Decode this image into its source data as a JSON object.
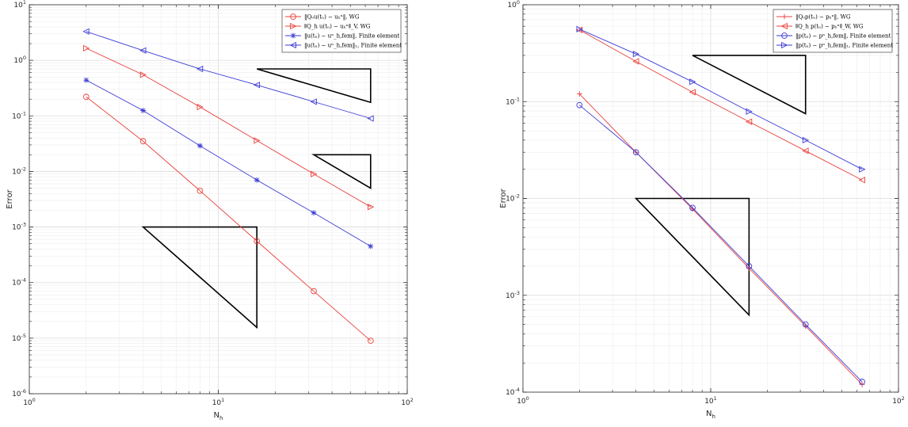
{
  "chart_data": [
    {
      "type": "line",
      "x_scale": "log",
      "y_scale": "log",
      "xlabel": "N",
      "xlabel_sub": "h",
      "ylabel": "Error",
      "xlim": [
        1,
        100
      ],
      "ylim": [
        1e-06,
        10
      ],
      "grid": true,
      "legend_position": "top-right",
      "x_ticks": [
        {
          "base": "10",
          "exp": "0"
        },
        {
          "base": "10",
          "exp": "1"
        },
        {
          "base": "10",
          "exp": "2"
        }
      ],
      "y_ticks": [
        {
          "base": "10",
          "exp": "-6"
        },
        {
          "base": "10",
          "exp": "-5"
        },
        {
          "base": "10",
          "exp": "-4"
        },
        {
          "base": "10",
          "exp": "-3"
        },
        {
          "base": "10",
          "exp": "-2"
        },
        {
          "base": "10",
          "exp": "-1"
        },
        {
          "base": "10",
          "exp": "0"
        },
        {
          "base": "10",
          "exp": "1"
        }
      ],
      "x": [
        2,
        4,
        8,
        16,
        32,
        64
      ],
      "series": [
        {
          "name": "‖Q₀u(tₙ) − uₕⁿ‖, WG",
          "color": "#e8413c",
          "marker": "circle",
          "values": [
            0.22,
            0.035,
            0.0045,
            0.00056,
            7e-05,
            9e-06
          ]
        },
        {
          "name": "⦀Q_h u(tₙ) − uₕⁿ⦀_V, WG",
          "color": "#e8413c",
          "marker": "triangle-right",
          "values": [
            1.65,
            0.55,
            0.145,
            0.036,
            0.009,
            0.0023
          ]
        },
        {
          "name": "‖u(tₙ) − uⁿ_h,fem‖, Finite element",
          "color": "#3b3bd6",
          "marker": "asterisk",
          "values": [
            0.44,
            0.125,
            0.029,
            0.007,
            0.0018,
            0.00045
          ]
        },
        {
          "name": "‖u(tₙ) − uⁿ_h,fem‖₁, Finite element",
          "color": "#3b3bd6",
          "marker": "triangle-left",
          "values": [
            3.3,
            1.5,
            0.7,
            0.36,
            0.18,
            0.09
          ]
        }
      ],
      "slope_triangles": [
        {
          "x": [
            16,
            64
          ],
          "y": [
            0.7,
            0.175
          ]
        },
        {
          "x": [
            32,
            64
          ],
          "y": [
            0.02,
            0.005
          ]
        },
        {
          "x": [
            4,
            16
          ],
          "y": [
            0.001,
            1.56e-05
          ]
        }
      ]
    },
    {
      "type": "line",
      "x_scale": "log",
      "y_scale": "log",
      "xlabel": "N",
      "xlabel_sub": "h",
      "ylabel": "Error",
      "xlim": [
        1,
        100
      ],
      "ylim": [
        0.0001,
        1
      ],
      "grid": true,
      "legend_position": "top-right",
      "x_ticks": [
        {
          "base": "10",
          "exp": "0"
        },
        {
          "base": "10",
          "exp": "1"
        },
        {
          "base": "10",
          "exp": "2"
        }
      ],
      "y_ticks": [
        {
          "base": "10",
          "exp": "-4"
        },
        {
          "base": "10",
          "exp": "-3"
        },
        {
          "base": "10",
          "exp": "-2"
        },
        {
          "base": "10",
          "exp": "-1"
        },
        {
          "base": "10",
          "exp": "0"
        }
      ],
      "x": [
        2,
        4,
        8,
        16,
        32,
        64
      ],
      "series": [
        {
          "name": "‖Q₀p(tₙ) − pₕⁿ‖, WG",
          "color": "#e8413c",
          "marker": "plus",
          "values": [
            0.12,
            0.03,
            0.0078,
            0.0019,
            0.00048,
            0.00012
          ]
        },
        {
          "name": "⦀Q_h p(tₙ) − pₕⁿ⦀_W, WG",
          "color": "#e8413c",
          "marker": "triangle-left",
          "values": [
            0.55,
            0.26,
            0.125,
            0.062,
            0.031,
            0.0155
          ]
        },
        {
          "name": "‖p(tₙ) − pⁿ_h,fem‖, Finite element",
          "color": "#3b3bd6",
          "marker": "circle",
          "values": [
            0.092,
            0.03,
            0.008,
            0.002,
            0.0005,
            0.000128
          ]
        },
        {
          "name": "‖p(tₙ) − pⁿ_h,fem‖₁, Finite element",
          "color": "#3b3bd6",
          "marker": "triangle-right",
          "values": [
            0.56,
            0.31,
            0.16,
            0.079,
            0.04,
            0.02
          ]
        }
      ],
      "slope_triangles": [
        {
          "x": [
            8,
            32
          ],
          "y": [
            0.3,
            0.075
          ]
        },
        {
          "x": [
            4,
            16
          ],
          "y": [
            0.01,
            0.000625
          ]
        }
      ]
    }
  ]
}
